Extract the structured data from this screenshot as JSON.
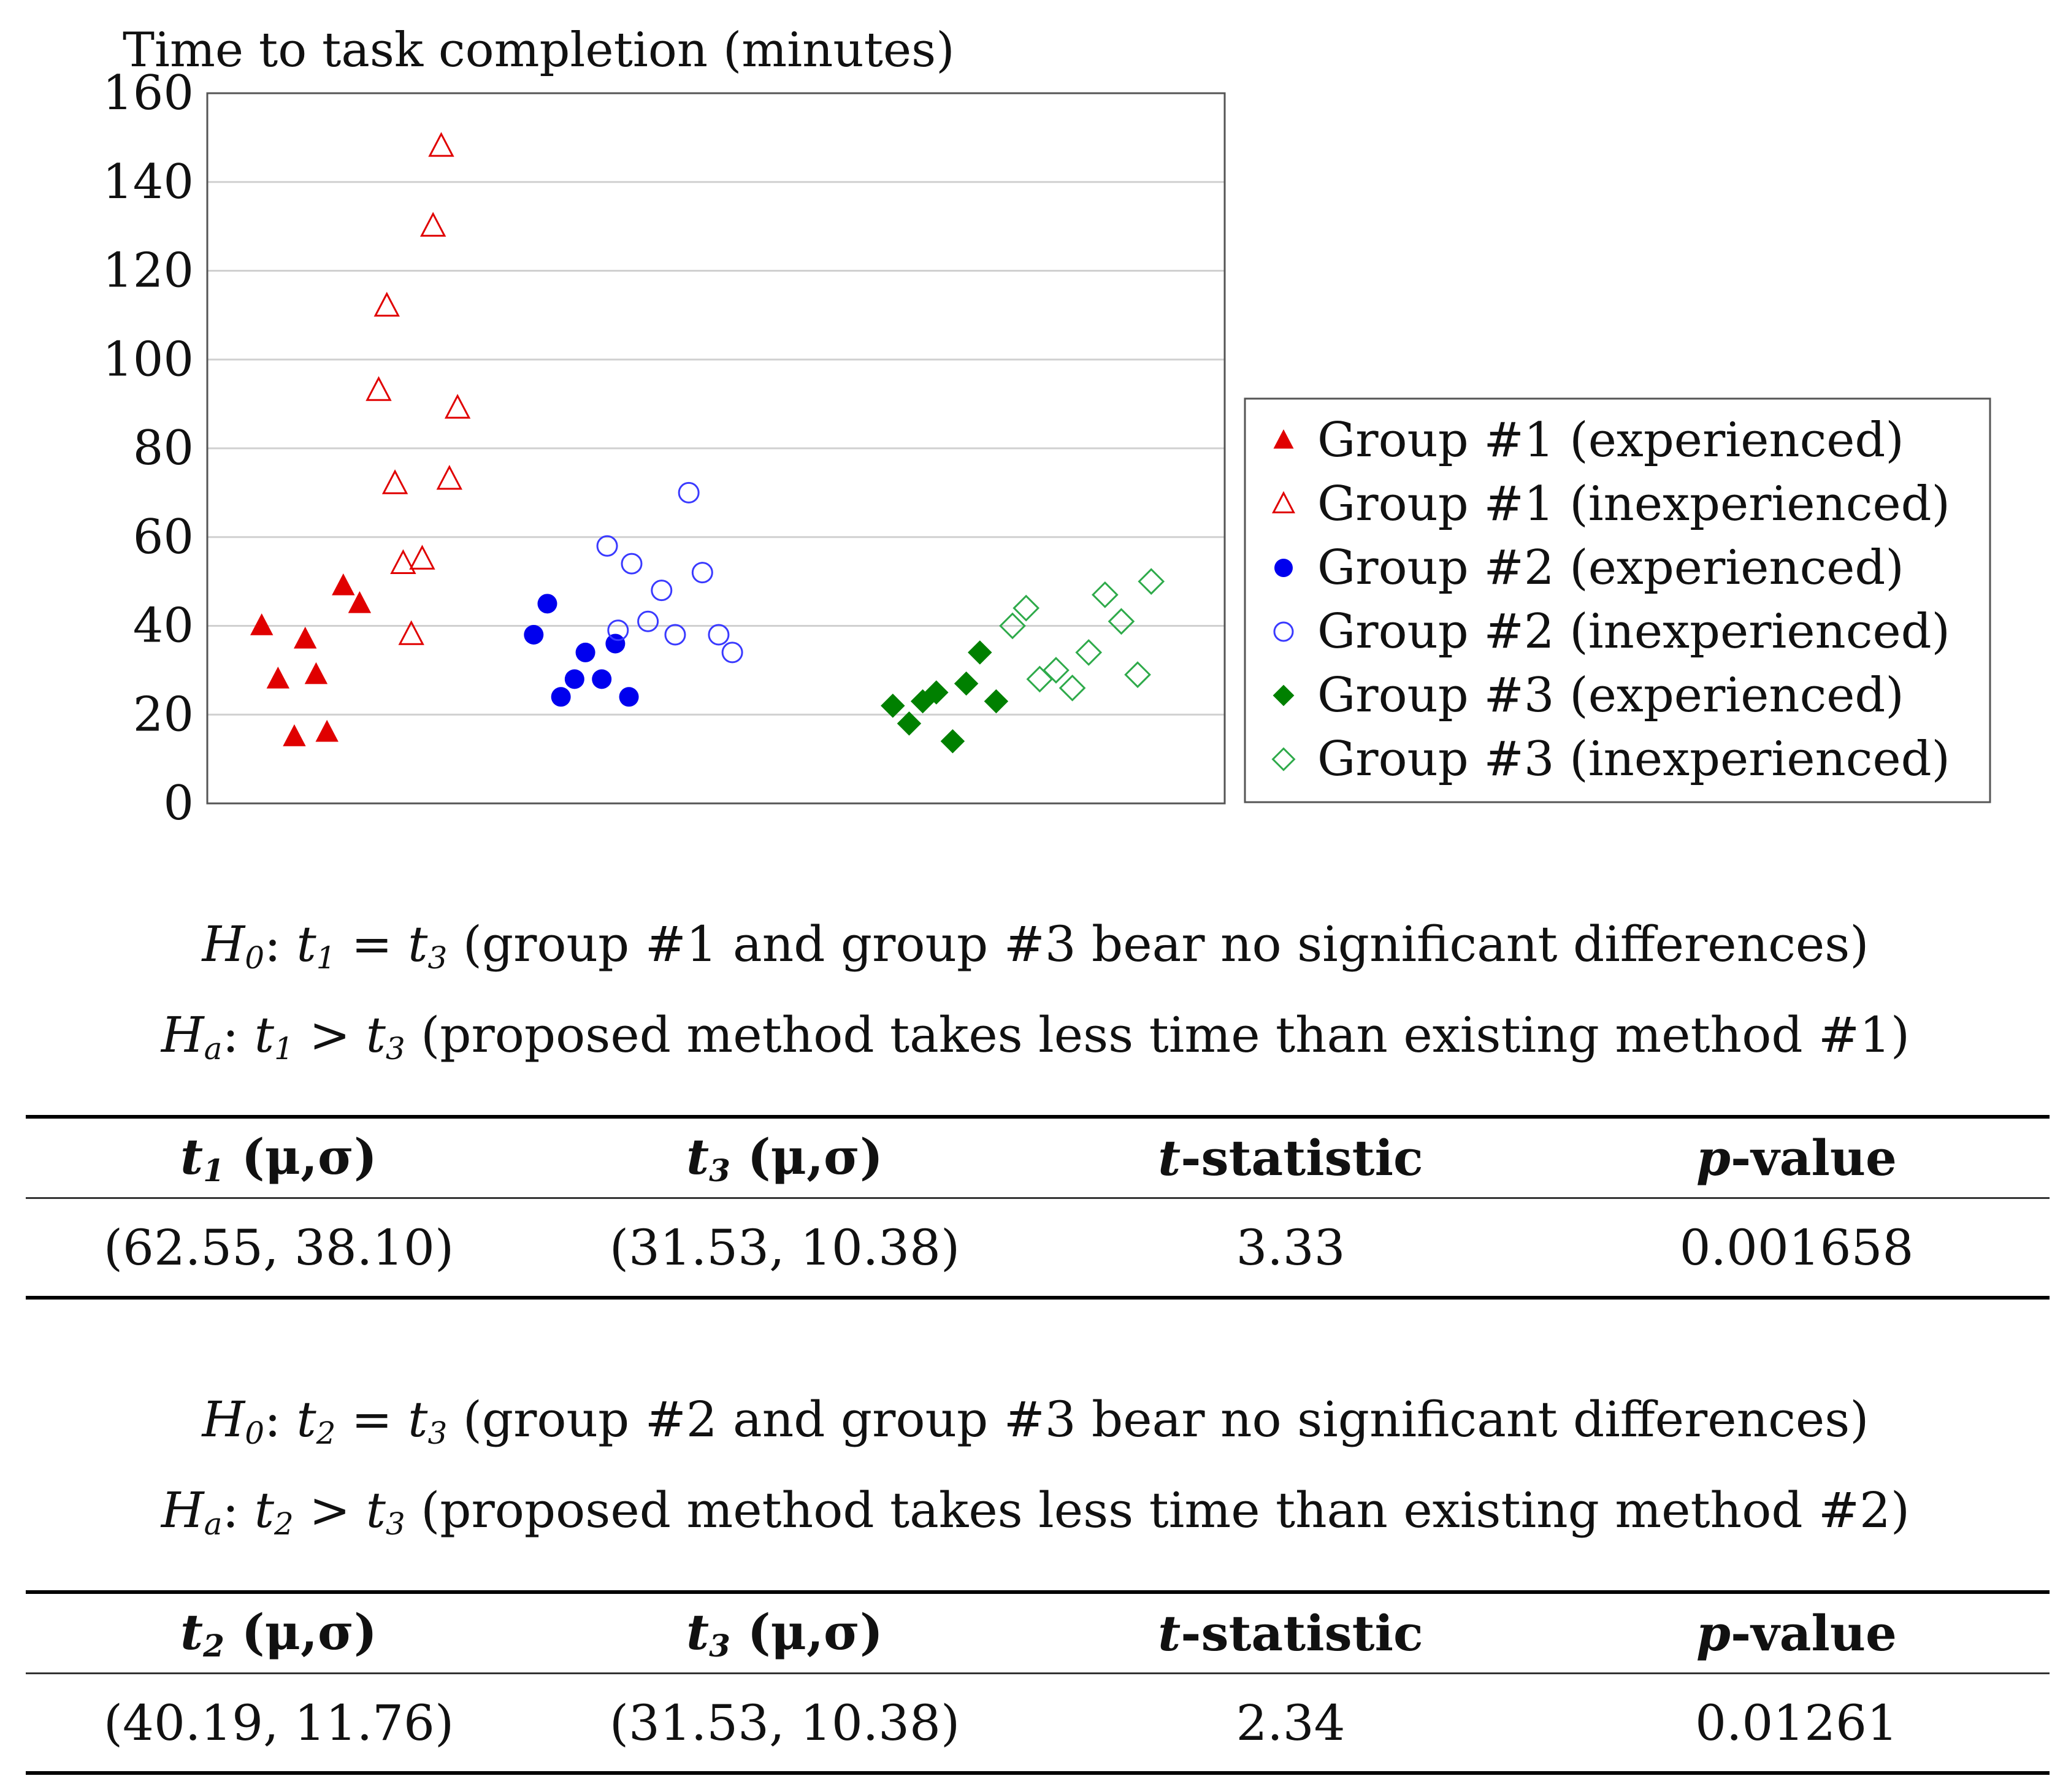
{
  "chart_data": {
    "type": "scatter",
    "ylabel": "Time to task completion (minutes)",
    "ylim": [
      0,
      160
    ],
    "yticks": [
      0,
      20,
      40,
      60,
      80,
      100,
      120,
      140,
      160
    ],
    "grid": true,
    "legend_position": "right",
    "series": [
      {
        "name": "Group #1 (experienced)",
        "color": "#e00000",
        "marker": "triangle",
        "filled": true,
        "x": [
          1.0,
          1.3,
          1.6,
          1.8,
          2.0,
          2.2,
          2.5,
          2.8
        ],
        "y": [
          40,
          28,
          15,
          37,
          29,
          16,
          49,
          45
        ]
      },
      {
        "name": "Group #1 (inexperienced)",
        "color": "#e00000",
        "marker": "triangle",
        "filled": false,
        "x": [
          3.15,
          3.3,
          3.45,
          3.6,
          3.75,
          3.95,
          4.15,
          4.3,
          4.45,
          4.6
        ],
        "y": [
          93,
          112,
          72,
          54,
          38,
          55,
          130,
          148,
          73,
          89
        ]
      },
      {
        "name": "Group #2 (experienced)",
        "color": "#0000ee",
        "marker": "circle",
        "filled": true,
        "x": [
          6.0,
          6.25,
          6.5,
          6.75,
          6.95,
          7.25,
          7.5,
          7.75
        ],
        "y": [
          38,
          45,
          24,
          28,
          34,
          28,
          36,
          24
        ]
      },
      {
        "name": "Group #2 (inexperienced)",
        "color": "#3a3aff",
        "marker": "circle",
        "filled": false,
        "x": [
          7.35,
          7.55,
          7.8,
          8.1,
          8.35,
          8.6,
          8.85,
          9.1,
          9.4,
          9.65
        ],
        "y": [
          58,
          39,
          54,
          41,
          48,
          38,
          70,
          52,
          38,
          34
        ]
      },
      {
        "name": "Group #3 (experienced)",
        "color": "#008000",
        "marker": "diamond",
        "filled": true,
        "x": [
          12.6,
          12.9,
          13.15,
          13.4,
          13.7,
          13.95,
          14.2,
          14.5
        ],
        "y": [
          22,
          18,
          23,
          25,
          14,
          27,
          34,
          23
        ]
      },
      {
        "name": "Group #3 (inexperienced)",
        "color": "#2eaa4a",
        "marker": "diamond",
        "filled": false,
        "x": [
          14.8,
          15.05,
          15.3,
          15.6,
          15.9,
          16.2,
          16.5,
          16.8,
          17.1,
          17.35
        ],
        "y": [
          40,
          44,
          28,
          30,
          26,
          34,
          47,
          41,
          29,
          50
        ]
      }
    ]
  },
  "test1": {
    "h0": {
      "label": "H",
      "sub": "0",
      "sep": ": ",
      "lhs": "t",
      "lhs_sub": "1",
      "op": " = ",
      "rhs": "t",
      "rhs_sub": "3",
      "text": " (group #1 and group #3 bear no significant differences)"
    },
    "ha": {
      "label": "H",
      "sub": "a",
      "sep": ": ",
      "lhs": "t",
      "lhs_sub": "1",
      "op": " > ",
      "rhs": "t",
      "rhs_sub": "3",
      "text": " (proposed method takes less time than existing method #1)"
    },
    "headers": [
      {
        "var": "t",
        "sub": "1",
        "text": " (μ,σ)"
      },
      {
        "var": "t",
        "sub": "3",
        "text": " (μ,σ)"
      },
      {
        "var": "t",
        "sub": "",
        "text": "-statistic"
      },
      {
        "var": "p",
        "sub": "",
        "text": "-value"
      }
    ],
    "values": [
      "(62.55, 38.10)",
      "(31.53, 10.38)",
      "3.33",
      "0.001658"
    ]
  },
  "test2": {
    "h0": {
      "label": "H",
      "sub": "0",
      "sep": ": ",
      "lhs": "t",
      "lhs_sub": "2",
      "op": " = ",
      "rhs": "t",
      "rhs_sub": "3",
      "text": " (group #2 and group #3 bear no significant differences)"
    },
    "ha": {
      "label": "H",
      "sub": "a",
      "sep": ": ",
      "lhs": "t",
      "lhs_sub": "2",
      "op": " > ",
      "rhs": "t",
      "rhs_sub": "3",
      "text": " (proposed method takes less time than existing method #2)"
    },
    "headers": [
      {
        "var": "t",
        "sub": "2",
        "text": " (μ,σ)"
      },
      {
        "var": "t",
        "sub": "3",
        "text": " (μ,σ)"
      },
      {
        "var": "t",
        "sub": "",
        "text": "-statistic"
      },
      {
        "var": "p",
        "sub": "",
        "text": "-value"
      }
    ],
    "values": [
      "(40.19, 11.76)",
      "(31.53, 10.38)",
      "2.34",
      "0.01261"
    ]
  }
}
